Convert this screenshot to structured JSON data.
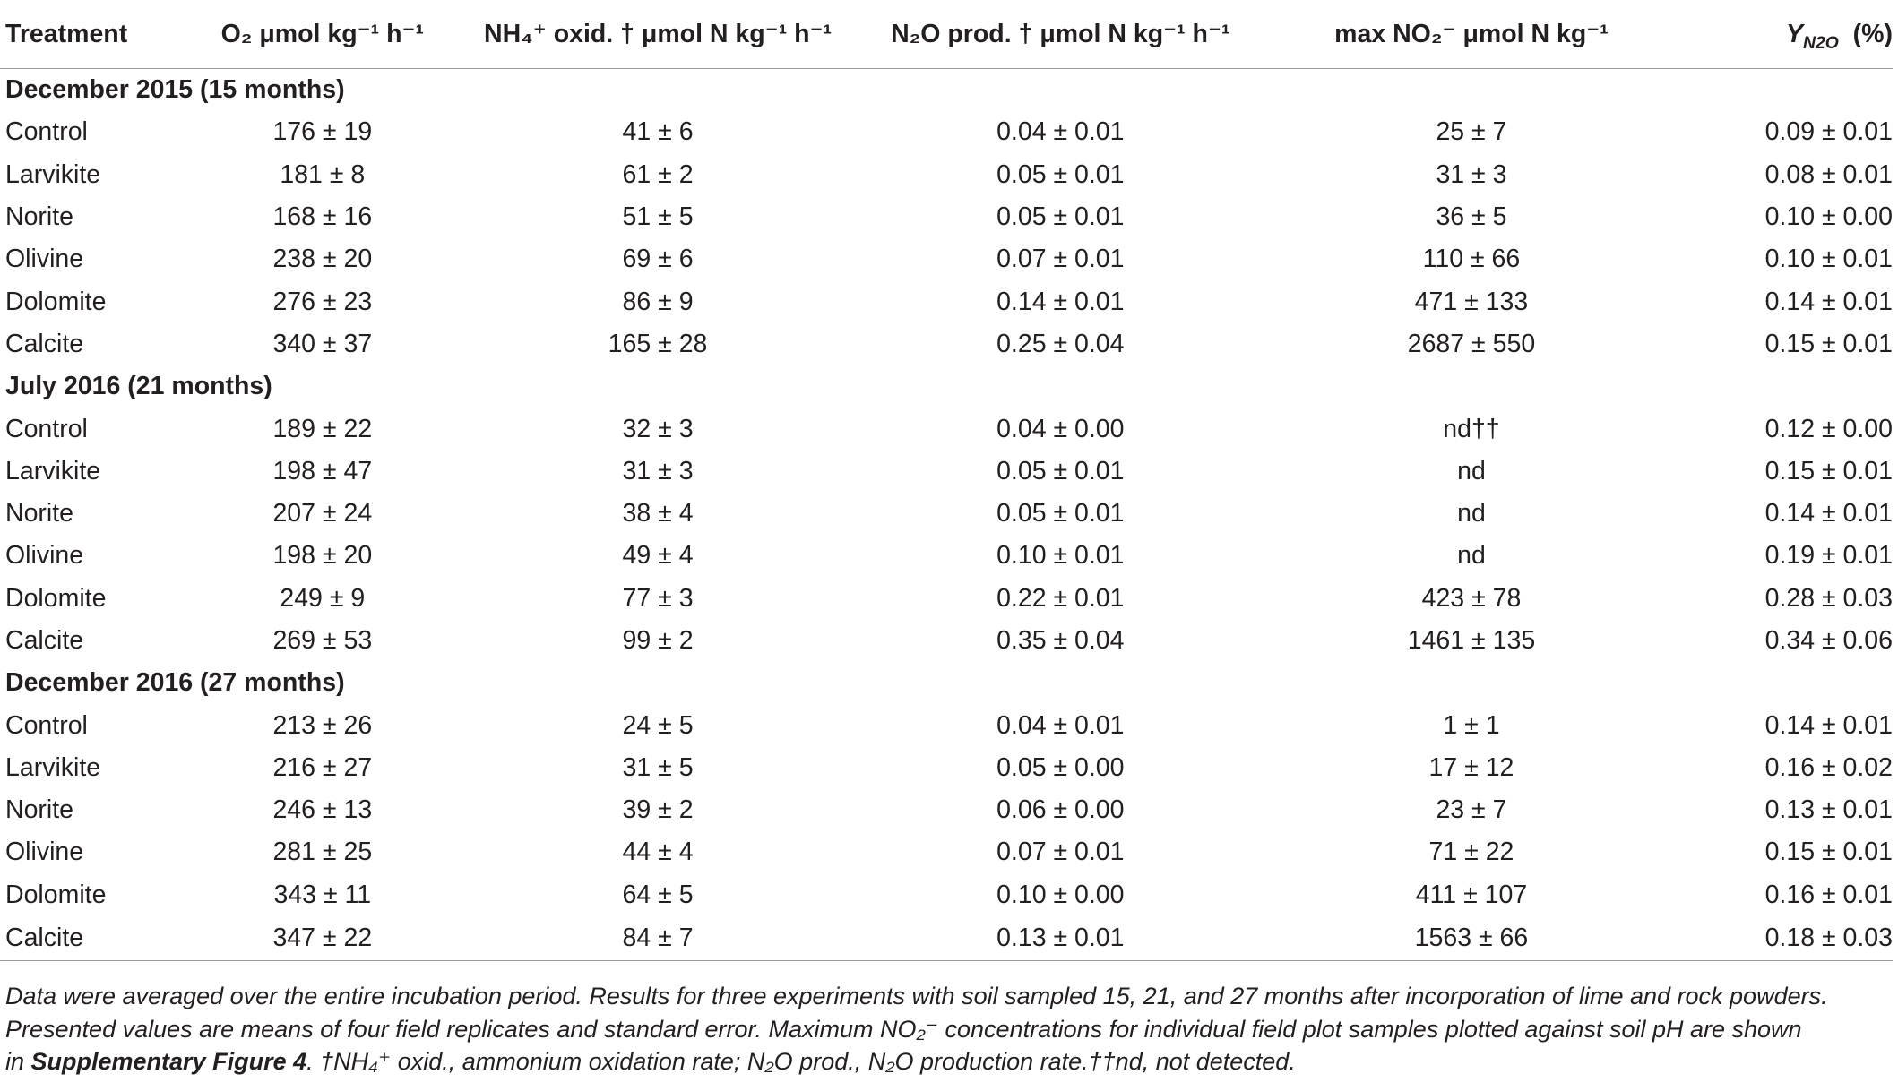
{
  "headers": {
    "treatment": "Treatment",
    "o2": "O₂ μmol kg⁻¹ h⁻¹",
    "nh4": "NH₄⁺ oxid. † μmol N kg⁻¹ h⁻¹",
    "n2o": "N₂O prod. † μmol N kg⁻¹ h⁻¹",
    "no2": "max NO₂⁻ μmol N kg⁻¹",
    "y_main": "Y",
    "y_sub": "N2O",
    "y_unit": "(%)"
  },
  "groups": [
    {
      "label": "December 2015 (15 months)",
      "rows": [
        {
          "treatment": "Control",
          "o2": "176 ± 19",
          "nh4": "41 ± 6",
          "n2o": "0.04 ± 0.01",
          "no2": "25 ± 7",
          "y": "0.09 ± 0.01"
        },
        {
          "treatment": "Larvikite",
          "o2": "181 ± 8",
          "nh4": "61 ± 2",
          "n2o": "0.05 ± 0.01",
          "no2": "31 ± 3",
          "y": "0.08 ± 0.01"
        },
        {
          "treatment": "Norite",
          "o2": "168 ± 16",
          "nh4": "51 ± 5",
          "n2o": "0.05 ± 0.01",
          "no2": "36 ± 5",
          "y": "0.10 ± 0.00"
        },
        {
          "treatment": "Olivine",
          "o2": "238 ± 20",
          "nh4": "69 ± 6",
          "n2o": "0.07 ± 0.01",
          "no2": "110 ± 66",
          "y": "0.10 ± 0.01"
        },
        {
          "treatment": "Dolomite",
          "o2": "276 ± 23",
          "nh4": "86 ± 9",
          "n2o": "0.14 ± 0.01",
          "no2": "471 ± 133",
          "y": "0.14 ± 0.01"
        },
        {
          "treatment": "Calcite",
          "o2": "340 ± 37",
          "nh4": "165 ± 28",
          "n2o": "0.25 ± 0.04",
          "no2": "2687 ± 550",
          "y": "0.15 ± 0.01"
        }
      ]
    },
    {
      "label": "July 2016 (21 months)",
      "rows": [
        {
          "treatment": "Control",
          "o2": "189 ± 22",
          "nh4": "32 ± 3",
          "n2o": "0.04 ± 0.00",
          "no2": "nd††",
          "y": "0.12 ± 0.00"
        },
        {
          "treatment": "Larvikite",
          "o2": "198 ± 47",
          "nh4": "31 ± 3",
          "n2o": "0.05 ± 0.01",
          "no2": "nd",
          "y": "0.15 ± 0.01"
        },
        {
          "treatment": "Norite",
          "o2": "207 ± 24",
          "nh4": "38 ± 4",
          "n2o": "0.05 ± 0.01",
          "no2": "nd",
          "y": "0.14 ± 0.01"
        },
        {
          "treatment": "Olivine",
          "o2": "198 ± 20",
          "nh4": "49 ± 4",
          "n2o": "0.10 ± 0.01",
          "no2": "nd",
          "y": "0.19 ± 0.01"
        },
        {
          "treatment": "Dolomite",
          "o2": "249 ± 9",
          "nh4": "77 ± 3",
          "n2o": "0.22 ± 0.01",
          "no2": "423 ± 78",
          "y": "0.28 ± 0.03"
        },
        {
          "treatment": "Calcite",
          "o2": "269 ± 53",
          "nh4": "99 ± 2",
          "n2o": "0.35 ± 0.04",
          "no2": "1461 ± 135",
          "y": "0.34 ± 0.06"
        }
      ]
    },
    {
      "label": "December 2016 (27 months)",
      "rows": [
        {
          "treatment": "Control",
          "o2": "213 ± 26",
          "nh4": "24 ± 5",
          "n2o": "0.04 ± 0.01",
          "no2": "1 ± 1",
          "y": "0.14 ± 0.01"
        },
        {
          "treatment": "Larvikite",
          "o2": "216 ± 27",
          "nh4": "31 ± 5",
          "n2o": "0.05 ± 0.00",
          "no2": "17 ± 12",
          "y": "0.16 ± 0.02"
        },
        {
          "treatment": "Norite",
          "o2": "246 ± 13",
          "nh4": "39 ± 2",
          "n2o": "0.06 ± 0.00",
          "no2": "23 ± 7",
          "y": "0.13 ± 0.01"
        },
        {
          "treatment": "Olivine",
          "o2": "281 ± 25",
          "nh4": "44 ± 4",
          "n2o": "0.07 ± 0.01",
          "no2": "71 ± 22",
          "y": "0.15 ± 0.01"
        },
        {
          "treatment": "Dolomite",
          "o2": "343 ± 11",
          "nh4": "64 ± 5",
          "n2o": "0.10 ± 0.00",
          "no2": "411 ± 107",
          "y": "0.16 ± 0.01"
        },
        {
          "treatment": "Calcite",
          "o2": "347 ± 22",
          "nh4": "84 ± 7",
          "n2o": "0.13 ± 0.01",
          "no2": "1563 ± 66",
          "y": "0.18 ± 0.03"
        }
      ]
    }
  ],
  "footnote": {
    "line1": "Data were averaged over the entire incubation period. Results for three experiments with soil sampled 15, 21, and 27 months after incorporation of lime and rock powders.",
    "line2": "Presented values are means of four field replicates and standard error. Maximum NO₂⁻ concentrations for individual field plot samples plotted against soil pH are shown",
    "line3_pre": "in ",
    "line3_link": "Supplementary Figure 4",
    "line3_post": ". †NH₄⁺ oxid., ammonium oxidation rate; N₂O prod., N₂O production rate.††nd, not detected."
  }
}
